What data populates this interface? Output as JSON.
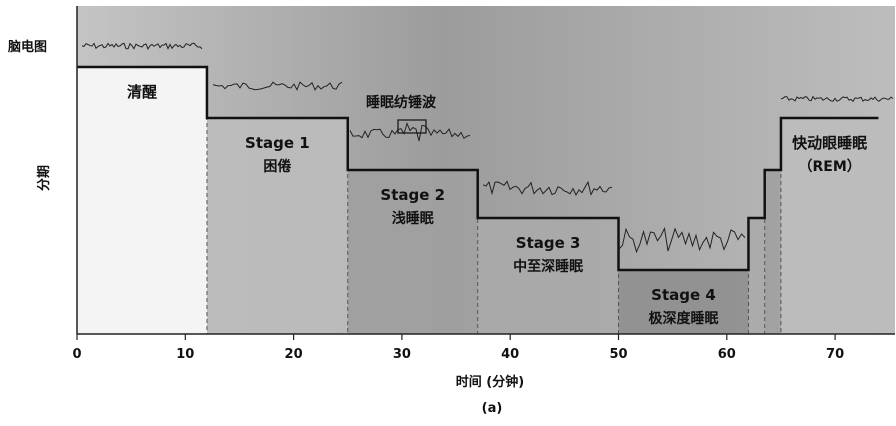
{
  "figure": {
    "eeg_label": "脑电图",
    "y_axis_label": "分期",
    "x_axis_label": "时间 (分钟)",
    "caption": "(a)",
    "spindle_label": "睡眠纺锤波"
  },
  "chart_data": {
    "type": "step",
    "xlim": [
      0,
      74
    ],
    "x_ticks": [
      0,
      10,
      20,
      30,
      40,
      50,
      60,
      70
    ],
    "stages": [
      {
        "name": "清醒",
        "subtitle": "",
        "start": 0,
        "end": 12,
        "level": 1
      },
      {
        "name": "Stage 1",
        "subtitle": "困倦",
        "start": 12,
        "end": 25,
        "level": 2
      },
      {
        "name": "Stage 2",
        "subtitle": "浅睡眠",
        "start": 25,
        "end": 37,
        "level": 3
      },
      {
        "name": "Stage 3",
        "subtitle": "中至深睡眠",
        "start": 37,
        "end": 50,
        "level": 4
      },
      {
        "name": "Stage 4",
        "subtitle": "极深度睡眠",
        "start": 50,
        "end": 62,
        "level": 5
      },
      {
        "name": "",
        "subtitle": "",
        "start": 62,
        "end": 63.5,
        "level": 4
      },
      {
        "name": "",
        "subtitle": "",
        "start": 63.5,
        "end": 65,
        "level": 3
      },
      {
        "name": "快动眼睡眠",
        "subtitle": "（REM）",
        "start": 65,
        "end": 74,
        "level": 2
      }
    ]
  },
  "colors": {
    "background": "#a9a9a9",
    "step_line": "#111111",
    "divider": "#555555"
  }
}
